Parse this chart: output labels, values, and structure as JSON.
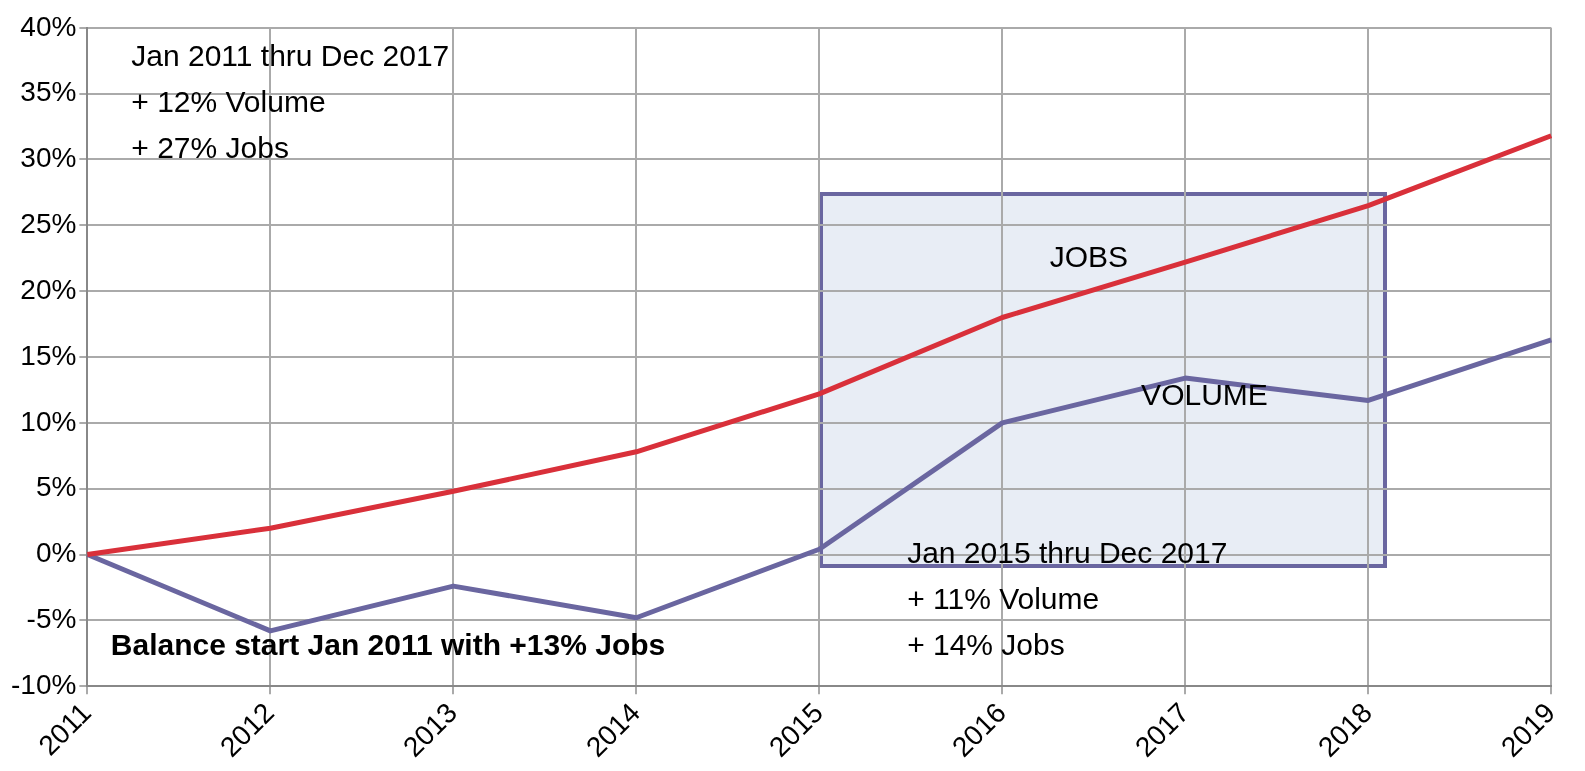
{
  "chart_data": {
    "type": "line",
    "categories": [
      "2011",
      "2012",
      "2013",
      "2014",
      "2015",
      "2016",
      "2017",
      "2018",
      "2019"
    ],
    "series": [
      {
        "name": "JOBS",
        "color": "#d9303a",
        "values": [
          0,
          2,
          4.8,
          7.8,
          12.2,
          18,
          22.2,
          26.5,
          31.8
        ]
      },
      {
        "name": "VOLUME",
        "color": "#6a66a0",
        "values": [
          0,
          -5.8,
          -2.4,
          -4.8,
          0.4,
          10,
          13.4,
          11.7,
          16.3
        ]
      }
    ],
    "ylim": [
      -10,
      40
    ],
    "yticks": [
      {
        "value": -10,
        "label": "-10%"
      },
      {
        "value": -5,
        "label": "-5%"
      },
      {
        "value": 0,
        "label": "0%"
      },
      {
        "value": 5,
        "label": "5%"
      },
      {
        "value": 10,
        "label": "10%"
      },
      {
        "value": 15,
        "label": "15%"
      },
      {
        "value": 20,
        "label": "20%"
      },
      {
        "value": 25,
        "label": "25%"
      },
      {
        "value": 30,
        "label": "30%"
      },
      {
        "value": 35,
        "label": "35%"
      },
      {
        "value": 40,
        "label": "40%"
      }
    ],
    "grid": true,
    "legend": false,
    "marker": "none",
    "line_style": "solid",
    "annotations": [
      "Jan 2011 thru Dec 2017",
      "+ 12% Volume",
      "+ 27% Jobs",
      "Jan 2015 thru Dec 2017",
      "+ 11% Volume",
      "+ 14% Jobs",
      "Balance start Jan 2011 with +13% Jobs"
    ]
  }
}
